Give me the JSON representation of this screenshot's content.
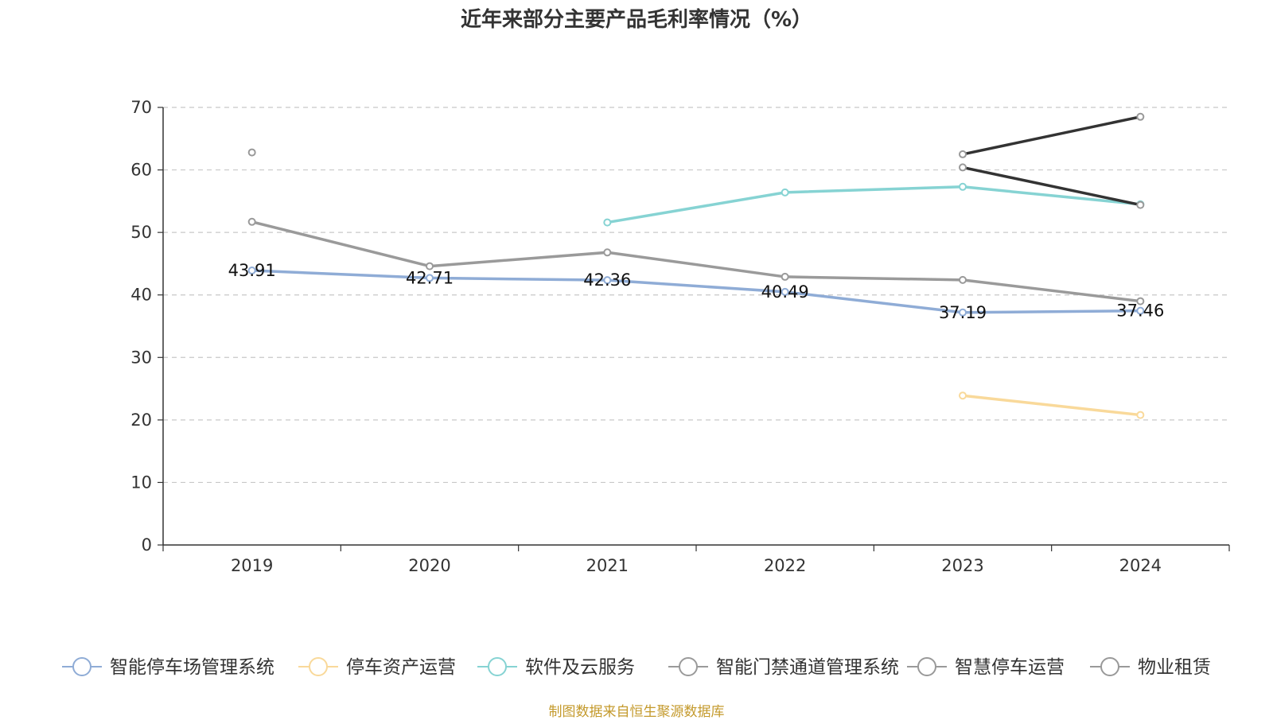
{
  "title": "近年来部分主要产品毛利率情况（%）",
  "source": "制图数据来自恒生聚源数据库",
  "chart_data": {
    "type": "line",
    "title": "近年来部分主要产品毛利率情况（%）",
    "categories": [
      "2019",
      "2020",
      "2021",
      "2022",
      "2023",
      "2024"
    ],
    "ylim": [
      0,
      70
    ],
    "yticks": [
      0,
      10,
      20,
      30,
      40,
      50,
      60,
      70
    ],
    "grid": true,
    "legend_position": "bottom",
    "series": [
      {
        "name": "智能停车场管理系统",
        "color": "#8facd6",
        "values": [
          43.91,
          42.71,
          42.36,
          40.49,
          37.19,
          37.46
        ],
        "labels": [
          "43.91",
          "42.71",
          "42.36",
          "40.49",
          "37.19",
          "37.46"
        ]
      },
      {
        "name": "停车资产运营",
        "color": "#f9d99a",
        "values": [
          null,
          null,
          null,
          null,
          23.9,
          20.8
        ]
      },
      {
        "name": "软件及云服务",
        "color": "#86d3d3",
        "values": [
          null,
          null,
          51.6,
          56.4,
          57.3,
          54.5
        ]
      },
      {
        "name": "智能门禁通道管理系统",
        "color": "#9a9a9a",
        "values": [
          51.7,
          44.6,
          46.8,
          42.9,
          42.4,
          39.0
        ]
      },
      {
        "name": "智慧停车运营",
        "color": "#333333",
        "values": [
          null,
          null,
          null,
          null,
          62.5,
          68.5
        ]
      },
      {
        "name": "物业租赁",
        "color": "#333333",
        "values": [
          62.8,
          null,
          null,
          null,
          60.4,
          54.4
        ]
      }
    ]
  }
}
